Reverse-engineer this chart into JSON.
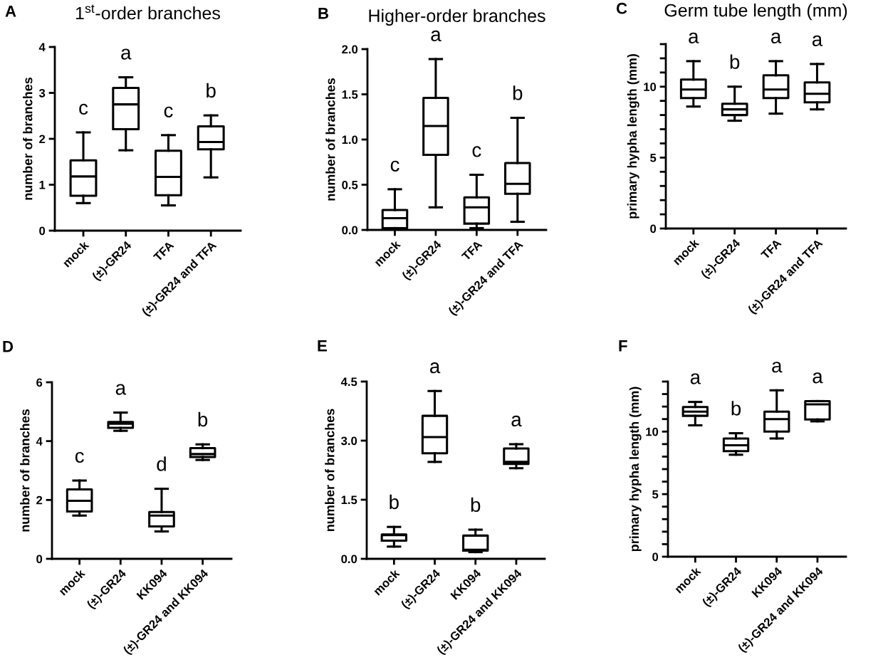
{
  "chart_data": [
    {
      "type": "box",
      "title": "1$^{st}$-order branches",
      "ylabel": "number of branches",
      "categories": [
        "mock",
        "(±)-GR24",
        "TFA",
        "(±)-GR24 and TFA"
      ],
      "ylim": [
        0,
        4
      ],
      "yticks": [
        0,
        1,
        2,
        3,
        4
      ],
      "boxes": [
        {
          "low": 0.6,
          "q1": 0.76,
          "median": 1.18,
          "q3": 1.53,
          "high": 2.14
        },
        {
          "low": 1.75,
          "q1": 2.21,
          "median": 2.75,
          "q3": 3.11,
          "high": 3.34
        },
        {
          "low": 0.55,
          "q1": 0.77,
          "median": 1.17,
          "q3": 1.74,
          "high": 2.08
        },
        {
          "low": 1.16,
          "q1": 1.77,
          "median": 1.93,
          "q3": 2.27,
          "high": 2.51
        }
      ],
      "annotations": [
        "A",
        "c",
        "a",
        "c",
        "b"
      ]
    },
    {
      "type": "box",
      "title": "Higher-order branches",
      "ylabel": "number of branches",
      "categories": [
        "mock",
        "(±)-GR24",
        "TFA",
        "(±)-GR24 and TFA"
      ],
      "ylim": [
        0,
        2
      ],
      "yticks": [
        {
          "value": 0,
          "label": "0.0"
        },
        {
          "value": 0.5,
          "label": "0.5"
        },
        {
          "value": 1,
          "label": "1.0"
        },
        {
          "value": 1.5,
          "label": "1.5"
        },
        {
          "value": 2,
          "label": "2.0"
        }
      ],
      "boxes": [
        {
          "low": 0.02,
          "q1": 0.02,
          "median": 0.13,
          "q3": 0.22,
          "high": 0.45
        },
        {
          "low": 0.25,
          "q1": 0.83,
          "median": 1.15,
          "q3": 1.46,
          "high": 1.89
        },
        {
          "low": 0.02,
          "q1": 0.07,
          "median": 0.25,
          "q3": 0.36,
          "high": 0.61
        },
        {
          "low": 0.09,
          "q1": 0.4,
          "median": 0.51,
          "q3": 0.74,
          "high": 1.24
        }
      ],
      "annotations": [
        "B",
        "c",
        "a",
        "c",
        "b"
      ]
    },
    {
      "type": "box",
      "title": "Germ tube length (mm)",
      "ylabel": "primary hypha length (mm)",
      "categories": [
        "mock",
        "(±)-GR24",
        "TFA",
        "(±)-GR24 and TFA"
      ],
      "ylim": [
        0,
        13
      ],
      "yticks": [
        0,
        {
          "value": 1,
          "label": null
        },
        {
          "value": 2,
          "label": null
        },
        {
          "value": 3,
          "label": null
        },
        {
          "value": 4,
          "label": null
        },
        5,
        {
          "value": 6,
          "label": null
        },
        {
          "value": 7,
          "label": null
        },
        {
          "value": 8,
          "label": null
        },
        {
          "value": 9,
          "label": null
        },
        10,
        {
          "value": 11,
          "label": null
        },
        {
          "value": 12,
          "label": null
        },
        {
          "value": 13,
          "label": null
        }
      ],
      "boxes": [
        {
          "low": 8.6,
          "q1": 9.2,
          "median": 9.8,
          "q3": 10.5,
          "high": 11.8
        },
        {
          "low": 7.6,
          "q1": 8.0,
          "median": 8.4,
          "q3": 8.8,
          "high": 10.0
        },
        {
          "low": 8.1,
          "q1": 9.2,
          "median": 9.8,
          "q3": 10.8,
          "high": 11.8
        },
        {
          "low": 8.4,
          "q1": 8.9,
          "median": 9.5,
          "q3": 10.3,
          "high": 11.6
        }
      ],
      "annotations": [
        "C",
        "a",
        "b",
        "a",
        "a"
      ]
    },
    {
      "type": "box",
      "ylabel": "number of branches",
      "categories": [
        "mock",
        "(±)-GR24",
        "KK094",
        "(±)-GR24 and KK094"
      ],
      "ylim": [
        0,
        6
      ],
      "yticks": [
        0,
        2,
        4,
        6
      ],
      "boxes": [
        {
          "low": 1.47,
          "q1": 1.61,
          "median": 1.97,
          "q3": 2.36,
          "high": 2.66
        },
        {
          "low": 4.35,
          "q1": 4.45,
          "median": 4.59,
          "q3": 4.65,
          "high": 4.97
        },
        {
          "low": 0.93,
          "q1": 1.1,
          "median": 1.47,
          "q3": 1.59,
          "high": 2.38
        },
        {
          "low": 3.36,
          "q1": 3.46,
          "median": 3.56,
          "q3": 3.76,
          "high": 3.89
        }
      ],
      "annotations": [
        "D",
        "c",
        "a",
        "d",
        "b"
      ]
    },
    {
      "type": "box",
      "ylabel": "number of branches",
      "categories": [
        "mock",
        "(±)-GR24",
        "KK094",
        "(±)-GR24 and KK094"
      ],
      "ylim": [
        0,
        4.5
      ],
      "yticks": [
        {
          "value": 0,
          "label": "0.0"
        },
        1.5,
        {
          "value": 3,
          "label": "3.0"
        },
        4.5
      ],
      "boxes": [
        {
          "low": 0.31,
          "q1": 0.46,
          "median": 0.6,
          "q3": 0.62,
          "high": 0.81
        },
        {
          "low": 2.46,
          "q1": 2.68,
          "median": 3.09,
          "q3": 3.63,
          "high": 4.26
        },
        {
          "low": 0.17,
          "q1": 0.21,
          "median": 0.23,
          "q3": 0.59,
          "high": 0.74
        },
        {
          "low": 2.3,
          "q1": 2.41,
          "median": 2.46,
          "q3": 2.8,
          "high": 2.91
        }
      ],
      "annotations": [
        "E",
        "b",
        "a",
        "b",
        "a"
      ]
    },
    {
      "type": "box",
      "ylabel": "primary hypha length (mm)",
      "categories": [
        "mock",
        "(±)-GR24",
        "KK094",
        "(±)-GR24 and KK094"
      ],
      "ylim": [
        0,
        14
      ],
      "yticks": [
        0,
        {
          "value": 1,
          "label": null
        },
        {
          "value": 2,
          "label": null
        },
        {
          "value": 3,
          "label": null
        },
        {
          "value": 4,
          "label": null
        },
        5,
        {
          "value": 6,
          "label": null
        },
        {
          "value": 7,
          "label": null
        },
        {
          "value": 8,
          "label": null
        },
        {
          "value": 9,
          "label": null
        },
        10,
        {
          "value": 11,
          "label": null
        },
        {
          "value": 12,
          "label": null
        },
        {
          "value": 13,
          "label": null
        },
        {
          "value": 14,
          "label": null
        }
      ],
      "boxes": [
        {
          "low": 10.5,
          "q1": 11.26,
          "median": 11.6,
          "q3": 11.97,
          "high": 12.37
        },
        {
          "low": 8.15,
          "q1": 8.44,
          "median": 8.91,
          "q3": 9.45,
          "high": 9.87
        },
        {
          "low": 9.45,
          "q1": 10.0,
          "median": 11.0,
          "q3": 11.6,
          "high": 13.3
        },
        {
          "low": 10.82,
          "q1": 10.97,
          "median": 12.18,
          "q3": 12.44,
          "high": 12.44
        }
      ],
      "annotations": [
        "F",
        "a",
        "b",
        "a",
        "a"
      ]
    }
  ]
}
